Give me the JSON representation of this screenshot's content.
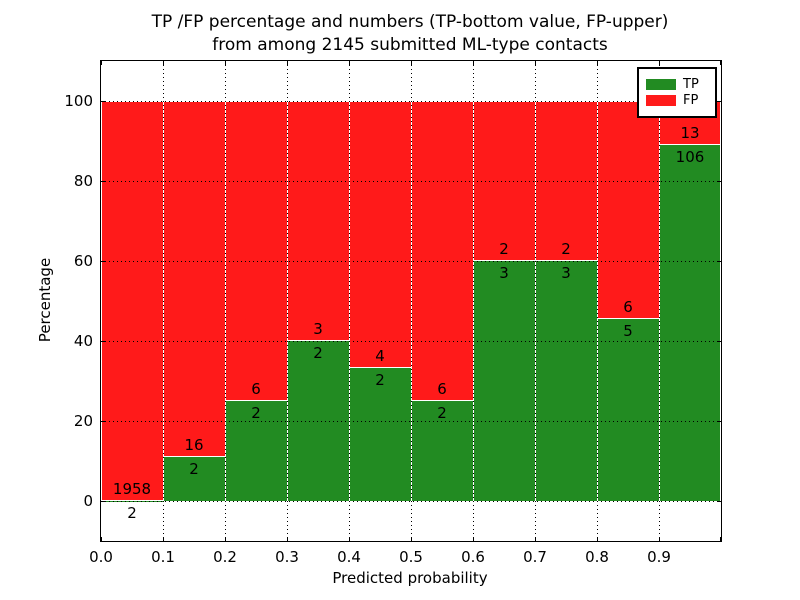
{
  "title": {
    "line1": "TP /FP percentage and numbers (TP-bottom value, FP-upper)",
    "line2": "from among 2145 submitted ML-type contacts"
  },
  "axes": {
    "xlabel": "Predicted probability",
    "ylabel": "Percentage",
    "x_tick_labels": [
      "0.0",
      "0.1",
      "0.2",
      "0.3",
      "0.4",
      "0.5",
      "0.6",
      "0.7",
      "0.8",
      "0.9"
    ],
    "y_tick_labels": [
      "0",
      "20",
      "40",
      "60",
      "80",
      "100"
    ]
  },
  "legend": {
    "entries": [
      {
        "label": "TP",
        "color": "#228b22"
      },
      {
        "label": "FP",
        "color": "#ff1a1a"
      }
    ]
  },
  "chart_data": {
    "type": "bar",
    "subtype": "stacked-normalized-percent",
    "title": "TP /FP percentage and numbers (TP-bottom value, FP-upper) from among 2145 submitted ML-type contacts",
    "xlabel": "Predicted probability",
    "ylabel": "Percentage",
    "xlim": [
      0.0,
      1.0
    ],
    "ylim": [
      -10,
      110
    ],
    "grid": true,
    "grid_style": "dotted",
    "legend_position": "upper right",
    "total_contacts": 2145,
    "bin_edges": [
      0.0,
      0.1,
      0.2,
      0.3,
      0.4,
      0.5,
      0.6,
      0.7,
      0.8,
      0.9,
      1.0
    ],
    "x_ticks": [
      0.0,
      0.1,
      0.2,
      0.3,
      0.4,
      0.5,
      0.6,
      0.7,
      0.8,
      0.9
    ],
    "y_ticks": [
      0,
      20,
      40,
      60,
      80,
      100
    ],
    "series": [
      {
        "name": "TP",
        "color": "#228b22",
        "counts": [
          2,
          2,
          2,
          2,
          2,
          2,
          3,
          3,
          5,
          106
        ]
      },
      {
        "name": "FP",
        "color": "#ff1a1a",
        "counts": [
          1958,
          16,
          6,
          3,
          4,
          6,
          2,
          2,
          6,
          13
        ]
      }
    ],
    "tp_percent_by_bin": [
      0.1,
      11.1,
      25.0,
      40.0,
      33.3,
      25.0,
      60.0,
      60.0,
      45.5,
      89.1
    ]
  }
}
